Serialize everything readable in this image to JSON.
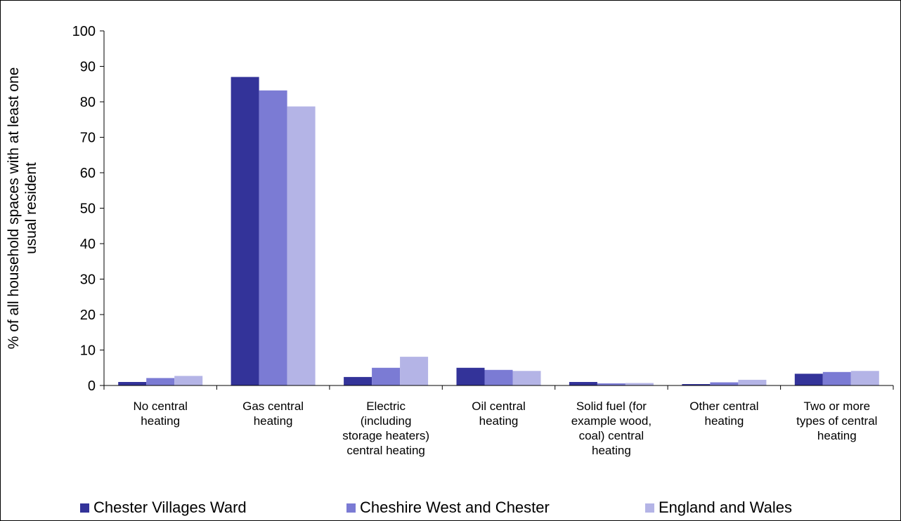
{
  "colors": {
    "series": [
      "#333399",
      "#7b7bd4",
      "#b4b4e6"
    ]
  },
  "chart_data": {
    "type": "bar",
    "title": "",
    "xlabel": "",
    "ylabel_lines": [
      "% of all household spaces with at least one",
      "usual resident"
    ],
    "ylim": [
      0,
      100
    ],
    "yticks": [
      0,
      10,
      20,
      30,
      40,
      50,
      60,
      70,
      80,
      90,
      100
    ],
    "grid": false,
    "legend_position": "bottom",
    "categories": [
      [
        "No central",
        "heating"
      ],
      [
        "Gas central",
        "heating"
      ],
      [
        "Electric",
        "(including",
        "storage heaters)",
        "central heating"
      ],
      [
        "Oil central",
        "heating"
      ],
      [
        "Solid fuel (for",
        "example wood,",
        "coal) central",
        "heating"
      ],
      [
        "Other central",
        "heating"
      ],
      [
        "Two or more",
        "types of central",
        "heating"
      ]
    ],
    "series": [
      {
        "name": "Chester Villages Ward",
        "values": [
          1.0,
          87.0,
          2.4,
          5.0,
          1.0,
          0.4,
          3.3
        ]
      },
      {
        "name": "Cheshire West and Chester",
        "values": [
          2.1,
          83.2,
          5.0,
          4.4,
          0.6,
          0.9,
          3.8
        ]
      },
      {
        "name": "England and Wales",
        "values": [
          2.7,
          78.7,
          8.1,
          4.1,
          0.7,
          1.6,
          4.1
        ]
      }
    ]
  }
}
